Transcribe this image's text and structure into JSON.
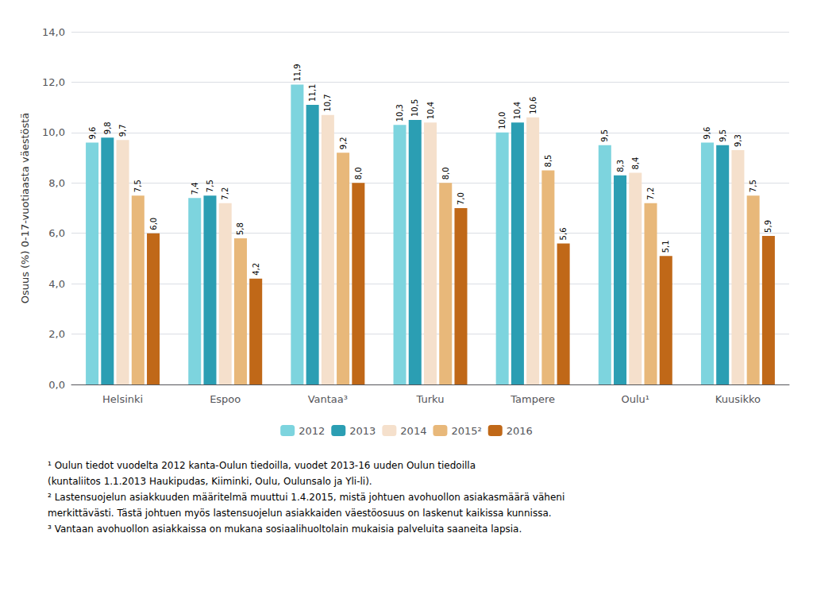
{
  "chart_data": {
    "type": "bar",
    "ylabel": "Osuus (%) 0-17-vuotiaasta väestöstä",
    "categories": [
      "Helsinki",
      "Espoo",
      "Vantaa³",
      "Turku",
      "Tampere",
      "Oulu¹",
      "Kuusikko"
    ],
    "series": [
      {
        "name": "2012",
        "color": "#7dd4de",
        "values": [
          9.6,
          7.4,
          11.9,
          10.3,
          10.0,
          9.5,
          9.6
        ],
        "value_labels": [
          "9,6",
          "7,4",
          "11,9",
          "10,3",
          "10,0",
          "9,5",
          "9,6"
        ]
      },
      {
        "name": "2013",
        "color": "#2b9eb3",
        "values": [
          9.8,
          7.5,
          11.1,
          10.5,
          10.4,
          8.3,
          9.5
        ],
        "value_labels": [
          "9,8",
          "7,5",
          "11,1",
          "10,5",
          "10,4",
          "8,3",
          "9,5"
        ]
      },
      {
        "name": "2014",
        "color": "#f5e0cc",
        "values": [
          9.7,
          7.2,
          10.7,
          10.4,
          10.6,
          8.4,
          9.3
        ],
        "value_labels": [
          "9,7",
          "7,2",
          "10,7",
          "10,4",
          "10,6",
          "8,4",
          "9,3"
        ]
      },
      {
        "name": "2015²",
        "color": "#e8b87a",
        "values": [
          7.5,
          5.8,
          9.2,
          8.0,
          8.5,
          7.2,
          7.5
        ],
        "value_labels": [
          "7,5",
          "5,8",
          "9,2",
          "8,0",
          "8,5",
          "7,2",
          "7,5"
        ]
      },
      {
        "name": "2016",
        "color": "#c06818",
        "values": [
          6.0,
          4.2,
          8.0,
          7.0,
          5.6,
          5.1,
          5.9
        ],
        "value_labels": [
          "6,0",
          "4,2",
          "8,0",
          "7,0",
          "5,6",
          "5,1",
          "5,9"
        ]
      }
    ],
    "ylim": [
      0,
      14.0
    ],
    "yticks": [
      {
        "value": 0.0,
        "label": "0,0"
      },
      {
        "value": 2.0,
        "label": "2,0"
      },
      {
        "value": 4.0,
        "label": "4,0"
      },
      {
        "value": 6.0,
        "label": "6,0"
      },
      {
        "value": 8.0,
        "label": "8,0"
      },
      {
        "value": 10.0,
        "label": "10,0"
      },
      {
        "value": 12.0,
        "label": "12,0"
      },
      {
        "value": 14.0,
        "label": "14,0"
      }
    ],
    "grid": true,
    "legend": "bottom",
    "data_labels": true,
    "annotations": [
      "¹ Oulun tiedot vuodelta 2012 kanta-Oulun tiedoilla, vuodet 2013-16 uuden Oulun tiedoilla",
      "(kuntaliitos 1.1.2013 Haukipudas, Kiiminki, Oulu, Oulunsalo ja Yli-li).",
      "² Lastensuojelun asiakkuuden määritelmä muuttui 1.4.2015, mistä johtuen avohuollon asiakasmäärä väheni",
      "merkittävästi. Tästä johtuen myös lastensuojelun asiakkaiden väestöosuus on laskenut kaikissa kunnissa.",
      "³ Vantaan avohuollon asiakkaissa on mukana sosiaalihuoltolain mukaisia palveluita saaneita lapsia."
    ]
  }
}
